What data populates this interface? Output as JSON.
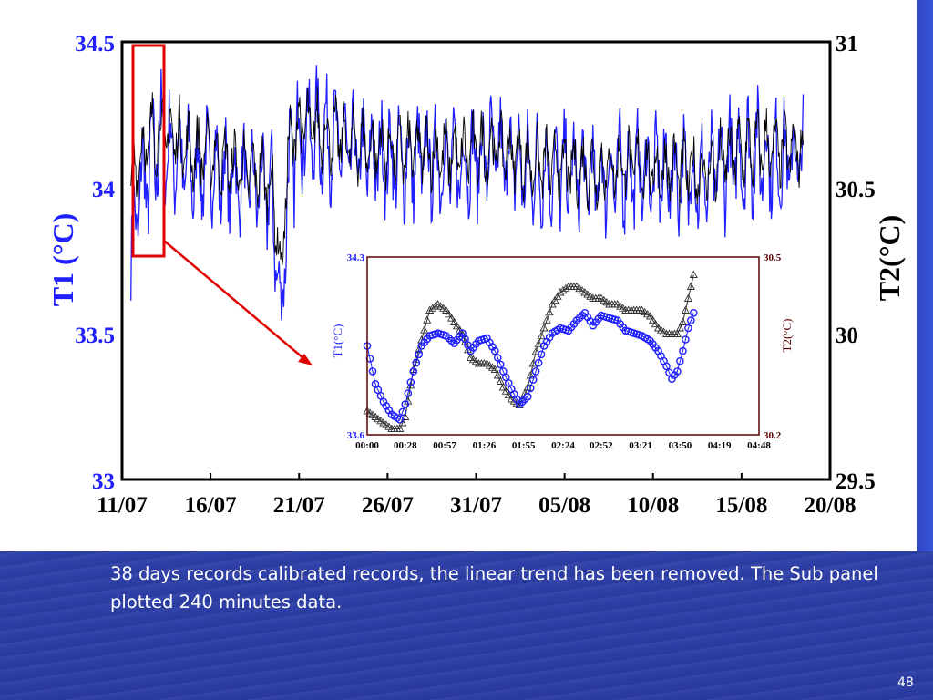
{
  "caption": "38 days records calibrated records, the linear trend has been removed. The Sub panel plotted 240 minutes data.",
  "page_number": "48",
  "colors": {
    "t1": "#1f1fff",
    "t2": "#000000",
    "highlight": "#e00000",
    "inset_frame": "#5a0000"
  },
  "chart_data": [
    {
      "type": "line",
      "xlabel": "",
      "ylabel": "T1 (°C)",
      "y2label": "T2(°C)",
      "x_tick_labels": [
        "11/07",
        "16/07",
        "21/07",
        "26/07",
        "31/07",
        "05/08",
        "10/08",
        "15/08",
        "20/08"
      ],
      "xlim": [
        "11/07",
        "20/08"
      ],
      "ylim": [
        33,
        34.5
      ],
      "y_ticks": [
        "34.5",
        "34",
        "33.5",
        "33"
      ],
      "y2lim": [
        29.5,
        31
      ],
      "y2_ticks": [
        "31",
        "30.5",
        "30",
        "29.5"
      ],
      "series": [
        {
          "name": "T1",
          "axis": "left",
          "x_day": [
            0.5,
            1,
            1.5,
            2,
            3,
            4,
            5,
            6,
            7,
            8,
            8.5,
            9,
            9.3,
            9.6,
            10,
            11,
            12,
            13,
            14,
            15,
            16,
            17,
            18,
            19,
            20,
            21,
            22,
            23,
            24,
            25,
            26,
            27,
            28,
            29,
            30,
            31,
            32,
            33,
            34,
            35,
            36,
            37,
            38,
            38.5
          ],
          "values": [
            33.75,
            34.0,
            34.05,
            34.15,
            34.12,
            34.05,
            34.08,
            34.03,
            34.02,
            34.0,
            33.95,
            33.55,
            33.95,
            34.1,
            34.2,
            34.18,
            34.16,
            34.12,
            34.1,
            34.1,
            34.08,
            34.1,
            34.09,
            34.08,
            34.1,
            34.12,
            34.1,
            34.05,
            34.06,
            34.05,
            34.04,
            34.03,
            34.05,
            34.06,
            34.04,
            34.05,
            34.04,
            34.02,
            34.08,
            34.1,
            34.12,
            34.1,
            34.1,
            34.1
          ],
          "amplitude": [
            0.2,
            0.22,
            0.25,
            0.25,
            0.22,
            0.2,
            0.2,
            0.2,
            0.2,
            0.2,
            0.25,
            0.1,
            0.28,
            0.25,
            0.22,
            0.22,
            0.2,
            0.2,
            0.2,
            0.2,
            0.2,
            0.2,
            0.2,
            0.2,
            0.2,
            0.2,
            0.2,
            0.2,
            0.2,
            0.2,
            0.2,
            0.2,
            0.2,
            0.2,
            0.2,
            0.2,
            0.2,
            0.2,
            0.22,
            0.22,
            0.22,
            0.2,
            0.2,
            0.2
          ]
        },
        {
          "name": "T2",
          "axis": "right",
          "x_day": [
            0.5,
            1,
            1.5,
            2,
            3,
            4,
            5,
            6,
            7,
            8,
            8.5,
            9,
            9.3,
            9.6,
            10,
            11,
            12,
            13,
            14,
            15,
            16,
            17,
            18,
            19,
            20,
            21,
            22,
            23,
            24,
            25,
            26,
            27,
            28,
            29,
            30,
            31,
            32,
            33,
            34,
            35,
            36,
            37,
            38,
            38.5
          ],
          "values": [
            30.5,
            30.62,
            30.66,
            30.7,
            30.68,
            30.62,
            30.62,
            30.58,
            30.56,
            30.55,
            30.5,
            30.2,
            30.55,
            30.68,
            30.72,
            30.7,
            30.68,
            30.65,
            30.64,
            30.63,
            30.62,
            30.63,
            30.62,
            30.61,
            30.63,
            30.64,
            30.62,
            30.58,
            30.58,
            30.57,
            30.56,
            30.56,
            30.58,
            30.58,
            30.56,
            30.57,
            30.56,
            30.55,
            30.6,
            30.62,
            30.64,
            30.63,
            30.63,
            30.63
          ],
          "amplitude": [
            0.12,
            0.14,
            0.15,
            0.15,
            0.14,
            0.13,
            0.13,
            0.13,
            0.13,
            0.13,
            0.15,
            0.08,
            0.16,
            0.15,
            0.14,
            0.14,
            0.13,
            0.13,
            0.13,
            0.13,
            0.13,
            0.13,
            0.13,
            0.13,
            0.13,
            0.13,
            0.13,
            0.13,
            0.13,
            0.13,
            0.13,
            0.13,
            0.13,
            0.13,
            0.13,
            0.13,
            0.13,
            0.13,
            0.14,
            0.14,
            0.14,
            0.13,
            0.13,
            0.13
          ]
        }
      ],
      "highlight_range": [
        "11/07 12:00",
        "13/07 00:00"
      ]
    },
    {
      "type": "line",
      "ylabel": "T1(°C)",
      "y2label": "T2(°C)",
      "x_tick_labels": [
        "00:00",
        "00:28",
        "00:57",
        "01:26",
        "01:55",
        "02:24",
        "02:52",
        "03:21",
        "03:50",
        "04:19",
        "04:48"
      ],
      "x_ticks_min": [
        0,
        28,
        57,
        86,
        115,
        144,
        172,
        201,
        230,
        259,
        288
      ],
      "xlim": [
        0,
        288
      ],
      "ylim": [
        33.6,
        34.3
      ],
      "y_ticks": [
        "34.3",
        "33.6"
      ],
      "y2lim": [
        30.2,
        30.5
      ],
      "y2_ticks": [
        "30.5",
        "30.2"
      ],
      "series": [
        {
          "name": "T1",
          "axis": "left",
          "marker": "circle",
          "x_min": [
            0,
            6,
            12,
            18,
            24,
            28,
            34,
            40,
            46,
            52,
            58,
            64,
            70,
            76,
            82,
            88,
            94,
            100,
            106,
            112,
            118,
            124,
            130,
            136,
            142,
            148,
            154,
            160,
            166,
            172,
            178,
            184,
            190,
            196,
            202,
            208,
            214,
            220,
            224,
            228,
            232,
            236,
            240
          ],
          "values": [
            33.95,
            33.8,
            33.73,
            33.68,
            33.66,
            33.72,
            33.85,
            33.95,
            33.99,
            34.0,
            33.99,
            33.96,
            34.0,
            33.93,
            33.97,
            33.98,
            33.93,
            33.85,
            33.78,
            33.72,
            33.75,
            33.85,
            33.95,
            34.0,
            34.02,
            34.01,
            34.05,
            34.08,
            34.03,
            34.07,
            34.06,
            34.05,
            34.01,
            34.0,
            33.99,
            33.97,
            33.93,
            33.87,
            33.82,
            33.85,
            33.93,
            34.02,
            34.08
          ]
        },
        {
          "name": "T2",
          "axis": "right",
          "marker": "triangle",
          "x_min": [
            0,
            6,
            12,
            18,
            24,
            28,
            34,
            40,
            46,
            52,
            58,
            64,
            70,
            76,
            82,
            88,
            94,
            100,
            106,
            112,
            118,
            124,
            130,
            136,
            142,
            148,
            154,
            160,
            166,
            172,
            178,
            184,
            190,
            196,
            202,
            208,
            214,
            220,
            224,
            228,
            232,
            236,
            240
          ],
          "values": [
            30.24,
            30.23,
            30.22,
            30.21,
            30.21,
            30.23,
            30.31,
            30.36,
            30.41,
            30.42,
            30.41,
            30.39,
            30.37,
            30.33,
            30.32,
            30.32,
            30.31,
            30.28,
            30.26,
            30.25,
            30.28,
            30.34,
            30.38,
            30.42,
            30.44,
            30.45,
            30.45,
            30.44,
            30.43,
            30.43,
            30.42,
            30.42,
            30.41,
            30.41,
            30.41,
            30.4,
            30.38,
            30.37,
            30.37,
            30.37,
            30.39,
            30.43,
            30.47
          ]
        }
      ]
    }
  ]
}
